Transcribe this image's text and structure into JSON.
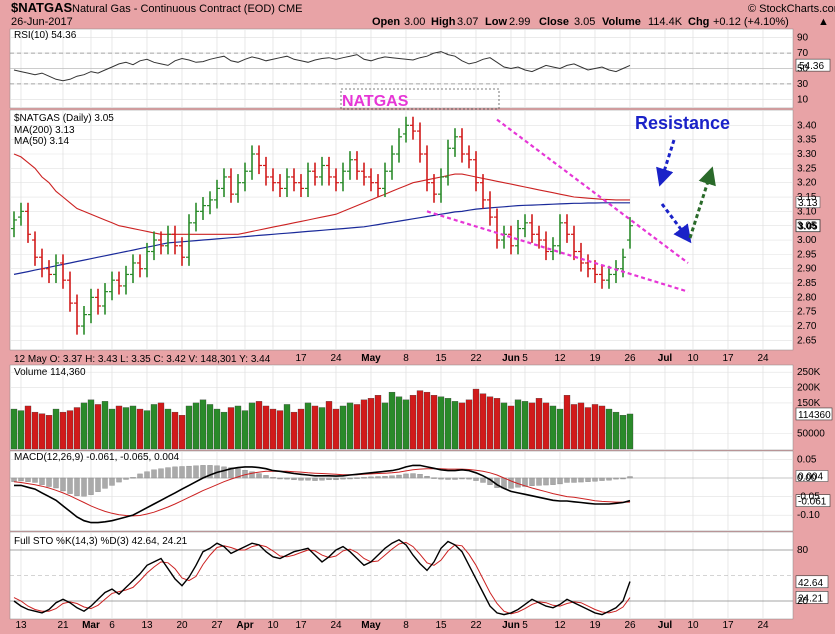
{
  "header": {
    "symbol": "$NATGAS",
    "description": "Natural Gas - Continuous Contract (EOD)",
    "exchange": "CME",
    "date": "26-Jun-2017",
    "watermark": "© StockCharts.com",
    "open_label": "Open",
    "open": "3.00",
    "high_label": "High",
    "high": "3.07",
    "low_label": "Low",
    "low": "2.99",
    "close_label": "Close",
    "close": "3.05",
    "volume_label": "Volume",
    "volume": "114.4K",
    "chg_label": "Chg",
    "chg": "+0.12 (+4.10%)",
    "chg_arrow": "▲"
  },
  "annotations": {
    "natgas_box": "NATGAS",
    "resistance": "Resistance"
  },
  "colors": {
    "up": "#2a8a2a",
    "down": "#d11a1a",
    "ma200": "#1a2a9a",
    "ma50": "#cc2222",
    "wedge": "#e636d6",
    "arrow_blue": "#1a22c8",
    "arrow_green": "#2a6a2a",
    "panel_bg": "#ffffff",
    "page_bg": "#e8a3a6"
  },
  "chart_data": [
    {
      "type": "line",
      "panel": "rsi",
      "legend": "RSI(10) 54.36",
      "y_ticks": [
        90,
        70,
        50,
        30,
        10
      ],
      "ylim": [
        0,
        100
      ],
      "reference_lines": [
        70,
        30
      ],
      "current_label": "54.36",
      "values": [
        48,
        46,
        44,
        42,
        44,
        40,
        36,
        34,
        36,
        40,
        42,
        46,
        44,
        48,
        52,
        56,
        58,
        55,
        60,
        62,
        58,
        56,
        54,
        60,
        63,
        61,
        58,
        59,
        62,
        64,
        66,
        60,
        58,
        62,
        65,
        63,
        60,
        62,
        64,
        66,
        62,
        60,
        58,
        61,
        63,
        64,
        62,
        64,
        66,
        68,
        62,
        60,
        63,
        65,
        64,
        63,
        62,
        61,
        64,
        66,
        70,
        72,
        68,
        66,
        60,
        56,
        58,
        62,
        64,
        58,
        52,
        50,
        52,
        48,
        46,
        50,
        54,
        52,
        50,
        54,
        56,
        52,
        48,
        50,
        52,
        48,
        46,
        50,
        54
      ]
    },
    {
      "type": "candlestick",
      "panel": "price",
      "legend": "$NATGAS (Daily) 3.05",
      "ma200_legend": "MA(200) 3.13",
      "ma50_legend": "MA(50) 3.14",
      "y_ticks": [
        3.4,
        3.35,
        3.3,
        3.25,
        3.2,
        3.15,
        3.1,
        3.05,
        3.0,
        2.95,
        2.9,
        2.85,
        2.8,
        2.75,
        2.7,
        2.65
      ],
      "ylim": [
        2.62,
        3.45
      ],
      "labels_right": [
        {
          "text": "3.13"
        },
        {
          "text": "3.05"
        }
      ],
      "ohlc_readout": "12 May O: 3.37   H: 3.43   L: 3.35   C: 3.42   V: 148,301   Y: 3.44",
      "closes": [
        3.07,
        3.1,
        3.02,
        2.94,
        2.9,
        2.88,
        2.92,
        2.86,
        2.78,
        2.7,
        2.74,
        2.8,
        2.77,
        2.82,
        2.86,
        2.84,
        2.88,
        2.92,
        2.9,
        2.96,
        3.0,
        2.98,
        3.02,
        2.98,
        2.94,
        3.06,
        3.1,
        3.12,
        3.14,
        3.18,
        3.22,
        3.16,
        3.2,
        3.24,
        3.3,
        3.26,
        3.22,
        3.2,
        3.18,
        3.22,
        3.2,
        3.18,
        3.24,
        3.22,
        3.26,
        3.22,
        3.2,
        3.24,
        3.28,
        3.24,
        3.22,
        3.2,
        3.18,
        3.24,
        3.3,
        3.36,
        3.4,
        3.38,
        3.3,
        3.2,
        3.16,
        3.22,
        3.32,
        3.36,
        3.3,
        3.28,
        3.2,
        3.14,
        3.08,
        3.0,
        3.02,
        2.98,
        3.04,
        3.06,
        3.02,
        3.0,
        2.96,
        2.98,
        3.06,
        3.02,
        2.96,
        2.92,
        2.9,
        2.88,
        2.86,
        2.88,
        2.9,
        2.94,
        3.05
      ],
      "opens": [
        3.04,
        3.08,
        3.1,
        3.0,
        2.94,
        2.9,
        2.88,
        2.92,
        2.86,
        2.78,
        2.7,
        2.74,
        2.8,
        2.77,
        2.82,
        2.86,
        2.84,
        2.88,
        2.92,
        2.9,
        2.96,
        3.0,
        2.98,
        3.02,
        2.98,
        2.94,
        3.06,
        3.1,
        3.12,
        3.14,
        3.18,
        3.22,
        3.16,
        3.2,
        3.24,
        3.3,
        3.26,
        3.22,
        3.2,
        3.18,
        3.22,
        3.2,
        3.18,
        3.24,
        3.22,
        3.26,
        3.22,
        3.2,
        3.24,
        3.28,
        3.24,
        3.22,
        3.2,
        3.18,
        3.24,
        3.3,
        3.37,
        3.4,
        3.38,
        3.3,
        3.2,
        3.16,
        3.22,
        3.32,
        3.36,
        3.3,
        3.28,
        3.2,
        3.14,
        3.08,
        3.0,
        3.02,
        2.98,
        3.04,
        3.06,
        3.02,
        3.0,
        2.96,
        2.98,
        3.06,
        3.02,
        2.96,
        2.92,
        2.9,
        2.88,
        2.86,
        2.88,
        2.9,
        3.0
      ],
      "ma200": [
        2.88,
        2.885,
        2.89,
        2.895,
        2.9,
        2.905,
        2.91,
        2.915,
        2.92,
        2.925,
        2.93,
        2.935,
        2.94,
        2.945,
        2.95,
        2.955,
        2.96,
        2.965,
        2.97,
        2.975,
        2.98,
        2.985,
        2.99,
        2.992,
        2.994,
        2.996,
        2.998,
        3.0,
        3.002,
        3.004,
        3.006,
        3.008,
        3.01,
        3.012,
        3.014,
        3.016,
        3.018,
        3.02,
        3.022,
        3.024,
        3.026,
        3.028,
        3.03,
        3.032,
        3.034,
        3.036,
        3.038,
        3.04,
        3.042,
        3.044,
        3.046,
        3.05,
        3.054,
        3.058,
        3.062,
        3.066,
        3.07,
        3.074,
        3.078,
        3.082,
        3.086,
        3.09,
        3.094,
        3.098,
        3.1,
        3.104,
        3.108,
        3.11,
        3.112,
        3.114,
        3.116,
        3.118,
        3.12,
        3.121,
        3.122,
        3.123,
        3.124,
        3.125,
        3.126,
        3.127,
        3.128,
        3.128,
        3.129,
        3.129,
        3.13,
        3.13,
        3.13,
        3.13,
        3.13
      ],
      "ma50": [
        3.3,
        3.29,
        3.27,
        3.25,
        3.22,
        3.2,
        3.17,
        3.15,
        3.13,
        3.11,
        3.1,
        3.09,
        3.08,
        3.07,
        3.06,
        3.05,
        3.045,
        3.04,
        3.035,
        3.03,
        3.025,
        3.02,
        3.02,
        3.02,
        3.02,
        3.02,
        3.02,
        3.02,
        3.02,
        3.02,
        3.02,
        3.02,
        3.02,
        3.025,
        3.03,
        3.035,
        3.04,
        3.045,
        3.05,
        3.055,
        3.06,
        3.065,
        3.07,
        3.075,
        3.08,
        3.085,
        3.09,
        3.1,
        3.11,
        3.12,
        3.13,
        3.14,
        3.15,
        3.16,
        3.17,
        3.18,
        3.19,
        3.2,
        3.205,
        3.21,
        3.215,
        3.22,
        3.225,
        3.23,
        3.23,
        3.225,
        3.22,
        3.215,
        3.21,
        3.205,
        3.2,
        3.195,
        3.19,
        3.185,
        3.18,
        3.175,
        3.17,
        3.165,
        3.16,
        3.155,
        3.15,
        3.148,
        3.146,
        3.144,
        3.142,
        3.141,
        3.14,
        3.14,
        3.14
      ]
    },
    {
      "type": "bar",
      "panel": "volume",
      "legend": "Volume 114,360",
      "y_ticks": [
        {
          "label": "250K",
          "v": 250
        },
        {
          "label": "200K",
          "v": 200
        },
        {
          "label": "150K",
          "v": 150
        },
        {
          "label": "50000",
          "v": 50
        }
      ],
      "current_label": "114360",
      "ylim": [
        0,
        270
      ],
      "values": [
        130,
        125,
        140,
        120,
        115,
        110,
        130,
        120,
        125,
        135,
        150,
        160,
        145,
        155,
        130,
        140,
        135,
        140,
        130,
        125,
        145,
        150,
        130,
        120,
        110,
        140,
        150,
        160,
        145,
        130,
        120,
        135,
        140,
        125,
        150,
        155,
        140,
        130,
        125,
        145,
        120,
        130,
        150,
        140,
        135,
        155,
        130,
        140,
        150,
        145,
        160,
        165,
        175,
        150,
        185,
        170,
        160,
        175,
        190,
        185,
        175,
        170,
        165,
        155,
        150,
        160,
        195,
        180,
        170,
        165,
        150,
        140,
        160,
        155,
        150,
        165,
        150,
        140,
        130,
        175,
        145,
        150,
        135,
        145,
        140,
        130,
        120,
        110,
        114
      ]
    },
    {
      "type": "line",
      "panel": "macd",
      "legend": "MACD(12,26,9) -0.061, -0.065, 0.004",
      "y_ticks": [
        0.05,
        0.0,
        -0.05,
        -0.1
      ],
      "labels_right": [
        "0.004",
        "-0.061"
      ],
      "ylim": [
        -0.14,
        0.07
      ],
      "macd": [
        -0.02,
        -0.02,
        -0.025,
        -0.03,
        -0.04,
        -0.05,
        -0.06,
        -0.075,
        -0.09,
        -0.105,
        -0.115,
        -0.12,
        -0.12,
        -0.118,
        -0.115,
        -0.11,
        -0.105,
        -0.1,
        -0.09,
        -0.08,
        -0.07,
        -0.06,
        -0.05,
        -0.04,
        -0.03,
        -0.02,
        -0.01,
        0.0,
        0.008,
        0.015,
        0.02,
        0.025,
        0.028,
        0.03,
        0.03,
        0.028,
        0.025,
        0.02,
        0.018,
        0.015,
        0.012,
        0.01,
        0.008,
        0.006,
        0.006,
        0.006,
        0.005,
        0.006,
        0.008,
        0.01,
        0.012,
        0.014,
        0.016,
        0.018,
        0.02,
        0.024,
        0.03,
        0.034,
        0.034,
        0.03,
        0.026,
        0.022,
        0.02,
        0.02,
        0.022,
        0.02,
        0.014,
        0.006,
        -0.004,
        -0.018,
        -0.028,
        -0.036,
        -0.04,
        -0.044,
        -0.048,
        -0.052,
        -0.056,
        -0.06,
        -0.062,
        -0.062,
        -0.064,
        -0.066,
        -0.068,
        -0.07,
        -0.07,
        -0.07,
        -0.068,
        -0.066,
        -0.061
      ],
      "signal": [
        -0.01,
        -0.012,
        -0.015,
        -0.018,
        -0.022,
        -0.027,
        -0.033,
        -0.04,
        -0.048,
        -0.057,
        -0.066,
        -0.075,
        -0.083,
        -0.09,
        -0.095,
        -0.099,
        -0.101,
        -0.102,
        -0.101,
        -0.097,
        -0.092,
        -0.085,
        -0.078,
        -0.07,
        -0.061,
        -0.052,
        -0.043,
        -0.034,
        -0.026,
        -0.018,
        -0.01,
        -0.003,
        0.003,
        0.009,
        0.013,
        0.016,
        0.018,
        0.018,
        0.018,
        0.018,
        0.017,
        0.016,
        0.014,
        0.013,
        0.012,
        0.011,
        0.01,
        0.009,
        0.009,
        0.009,
        0.01,
        0.011,
        0.012,
        0.013,
        0.014,
        0.016,
        0.019,
        0.022,
        0.024,
        0.025,
        0.025,
        0.025,
        0.024,
        0.024,
        0.024,
        0.023,
        0.021,
        0.018,
        0.014,
        0.008,
        0.0,
        -0.008,
        -0.015,
        -0.021,
        -0.027,
        -0.032,
        -0.037,
        -0.042,
        -0.046,
        -0.05,
        -0.052,
        -0.055,
        -0.058,
        -0.061,
        -0.063,
        -0.064,
        -0.065,
        -0.065,
        -0.065
      ]
    },
    {
      "type": "line",
      "panel": "sto",
      "legend": "Full STO %K(14,3) %D(3) 42.64, 24.21",
      "y_ticks": [
        80,
        20
      ],
      "labels_right": [
        "42.64",
        "24.21"
      ],
      "ylim": [
        0,
        100
      ],
      "k": [
        20,
        14,
        10,
        8,
        6,
        10,
        18,
        22,
        18,
        12,
        8,
        14,
        22,
        30,
        34,
        28,
        36,
        44,
        52,
        62,
        66,
        70,
        58,
        46,
        38,
        48,
        62,
        78,
        82,
        88,
        84,
        76,
        80,
        84,
        88,
        86,
        78,
        72,
        70,
        74,
        78,
        80,
        82,
        74,
        66,
        72,
        80,
        84,
        78,
        70,
        62,
        66,
        74,
        82,
        88,
        92,
        86,
        74,
        64,
        56,
        66,
        82,
        90,
        86,
        78,
        62,
        46,
        30,
        14,
        6,
        4,
        6,
        10,
        16,
        22,
        18,
        14,
        12,
        16,
        22,
        18,
        14,
        10,
        6,
        4,
        8,
        12,
        20,
        43
      ],
      "d": [
        24,
        20,
        14,
        10,
        8,
        8,
        11,
        17,
        19,
        17,
        13,
        11,
        15,
        22,
        29,
        31,
        33,
        36,
        44,
        53,
        60,
        66,
        65,
        58,
        47,
        44,
        49,
        63,
        74,
        83,
        85,
        83,
        80,
        80,
        84,
        86,
        84,
        79,
        73,
        72,
        74,
        77,
        80,
        79,
        74,
        71,
        73,
        79,
        81,
        77,
        70,
        66,
        67,
        74,
        81,
        87,
        89,
        84,
        75,
        65,
        62,
        68,
        79,
        86,
        85,
        75,
        62,
        46,
        30,
        17,
        8,
        5,
        7,
        11,
        16,
        19,
        18,
        15,
        14,
        17,
        19,
        18,
        14,
        10,
        7,
        6,
        8,
        13,
        24
      ]
    }
  ],
  "x_axis": {
    "labels": [
      {
        "text": "13",
        "i": 1
      },
      {
        "text": "21",
        "i": 7
      },
      {
        "text": "Mar",
        "i": 11,
        "bold": true
      },
      {
        "text": "6",
        "i": 14
      },
      {
        "text": "13",
        "i": 19
      },
      {
        "text": "20",
        "i": 24
      },
      {
        "text": "27",
        "i": 29
      },
      {
        "text": "Apr",
        "i": 33,
        "bold": true
      },
      {
        "text": "10",
        "i": 37
      },
      {
        "text": "17",
        "i": 41
      },
      {
        "text": "24",
        "i": 46
      },
      {
        "text": "May",
        "i": 51,
        "bold": true
      },
      {
        "text": "8",
        "i": 56
      },
      {
        "text": "15",
        "i": 61
      },
      {
        "text": "22",
        "i": 66
      },
      {
        "text": "Jun",
        "i": 71,
        "bold": true
      },
      {
        "text": "5",
        "i": 73
      },
      {
        "text": "12",
        "i": 78
      },
      {
        "text": "19",
        "i": 83
      },
      {
        "text": "26",
        "i": 88
      },
      {
        "text": "Jul",
        "i": 93,
        "bold": true
      },
      {
        "text": "10",
        "i": 97
      },
      {
        "text": "17",
        "i": 102
      },
      {
        "text": "24",
        "i": 107
      }
    ],
    "upper_labels": [
      {
        "text": "17",
        "i": 41
      },
      {
        "text": "24",
        "i": 46
      },
      {
        "text": "May",
        "i": 51,
        "bold": true
      },
      {
        "text": "8",
        "i": 56
      },
      {
        "text": "15",
        "i": 61
      },
      {
        "text": "22",
        "i": 66
      },
      {
        "text": "Jun",
        "i": 71,
        "bold": true
      },
      {
        "text": "5",
        "i": 73
      },
      {
        "text": "12",
        "i": 78
      },
      {
        "text": "19",
        "i": 83
      },
      {
        "text": "26",
        "i": 88
      },
      {
        "text": "Jul",
        "i": 93,
        "bold": true
      },
      {
        "text": "10",
        "i": 97
      },
      {
        "text": "17",
        "i": 102
      },
      {
        "text": "24",
        "i": 107
      }
    ]
  }
}
